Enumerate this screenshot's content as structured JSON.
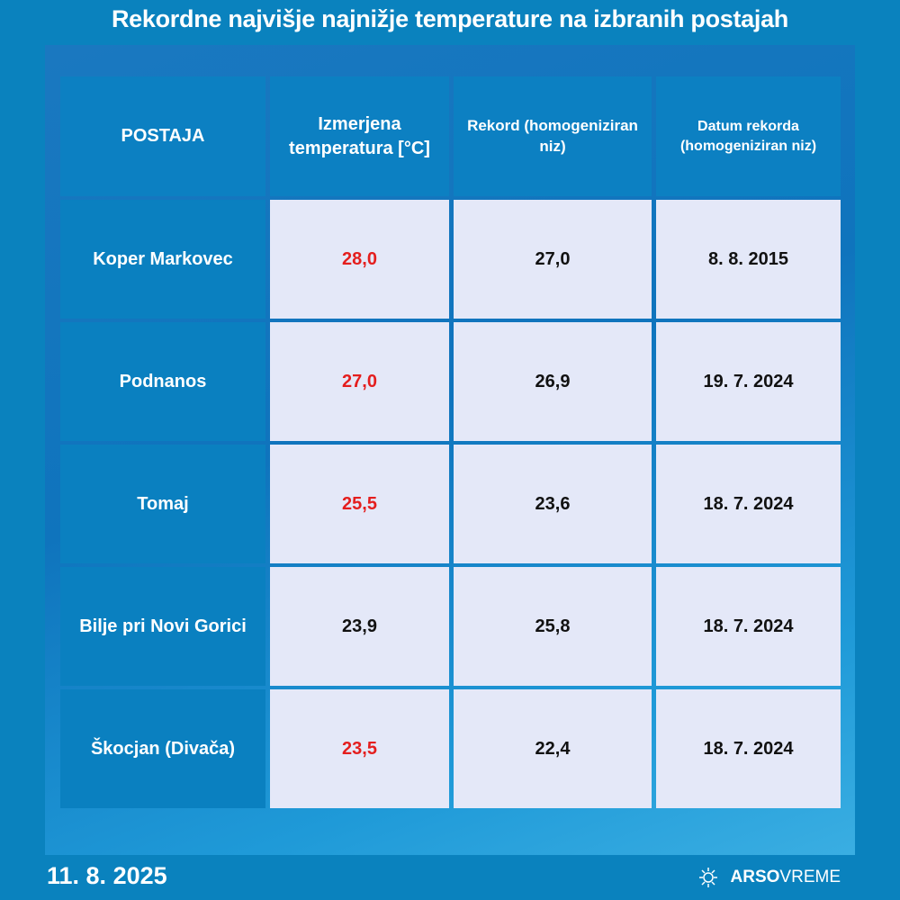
{
  "title": "Rekordne najvišje najnižje temperature na izbranih postajah",
  "headers": [
    "POSTAJA",
    "Izmerjena temperatura [°C]",
    "Rekord (homogeniziran niz)",
    "Datum rekorda (homogeniziran niz)"
  ],
  "rows": [
    {
      "station": "Koper Markovec",
      "measured": "28,0",
      "record": "27,0",
      "date": "8. 8. 2015",
      "exceeded": true
    },
    {
      "station": "Podnanos",
      "measured": "27,0",
      "record": "26,9",
      "date": "19. 7. 2024",
      "exceeded": true
    },
    {
      "station": "Tomaj",
      "measured": "25,5",
      "record": "23,6",
      "date": "18. 7. 2024",
      "exceeded": true
    },
    {
      "station": "Bilje pri Novi Gorici",
      "measured": "23,9",
      "record": "25,8",
      "date": "18. 7. 2024",
      "exceeded": false
    },
    {
      "station": "Škocjan (Divača)",
      "measured": "23,5",
      "record": "22,4",
      "date": "18. 7. 2024",
      "exceeded": true
    }
  ],
  "colors": {
    "exceeded": "#e41e1e",
    "background": "#0a82be"
  },
  "footer": {
    "date": "11. 8. 2025",
    "logo_bold": "ARSO",
    "logo_light": "VREME",
    "logo_icon": "sun-icon"
  }
}
